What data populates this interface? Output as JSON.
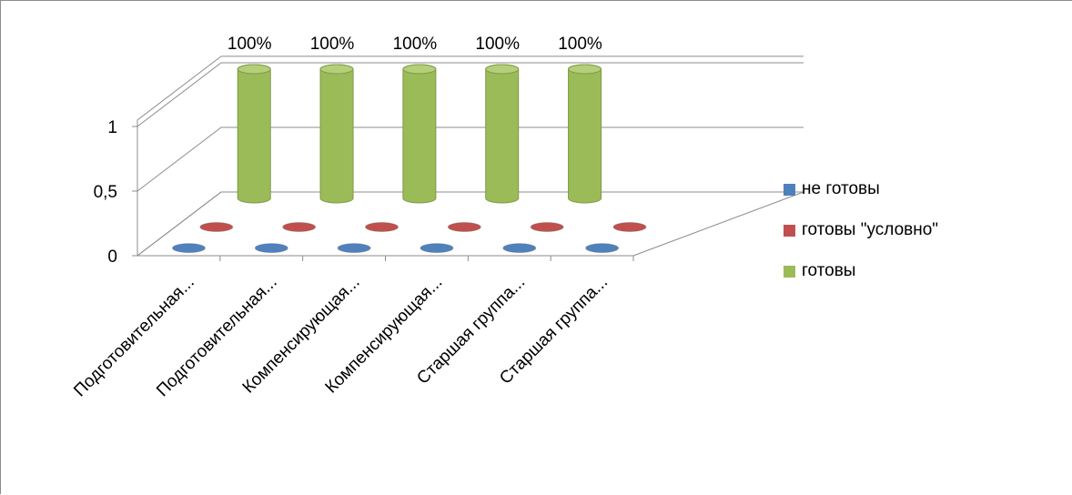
{
  "chart_data": {
    "type": "bar",
    "style": "3d-cylinder",
    "categories": [
      "Подготовительная...",
      "Подготовительная...",
      "Компенсирующая...",
      "Компенсирующая...",
      "Старшая группа...",
      "Старшая группа..."
    ],
    "series": [
      {
        "name": "не готовы",
        "values": [
          0,
          0,
          0,
          0,
          0,
          0
        ],
        "color": "#4f81bd"
      },
      {
        "name": "готовы \"условно\"",
        "values": [
          0,
          0,
          0,
          0,
          0,
          0
        ],
        "color": "#c0504d"
      },
      {
        "name": "готовы",
        "values": [
          1,
          1,
          1,
          1,
          1,
          null
        ],
        "color": "#9bbb59"
      }
    ],
    "data_labels": [
      "100%",
      "100%",
      "100%",
      "100%",
      "100%"
    ],
    "y_ticks": [
      "0",
      "0,5",
      "1"
    ],
    "ylim": [
      0,
      1
    ],
    "legend_position": "right",
    "grid": true
  }
}
